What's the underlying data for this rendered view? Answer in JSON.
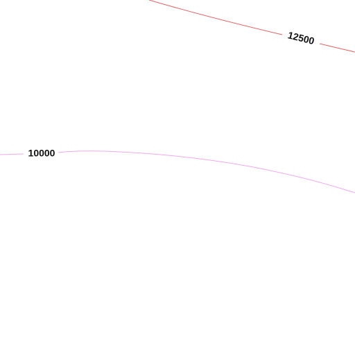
{
  "contours": [
    {
      "value": 12500,
      "color": "#e86060"
    },
    {
      "value": 10000,
      "color": "#f0a8f0"
    }
  ]
}
